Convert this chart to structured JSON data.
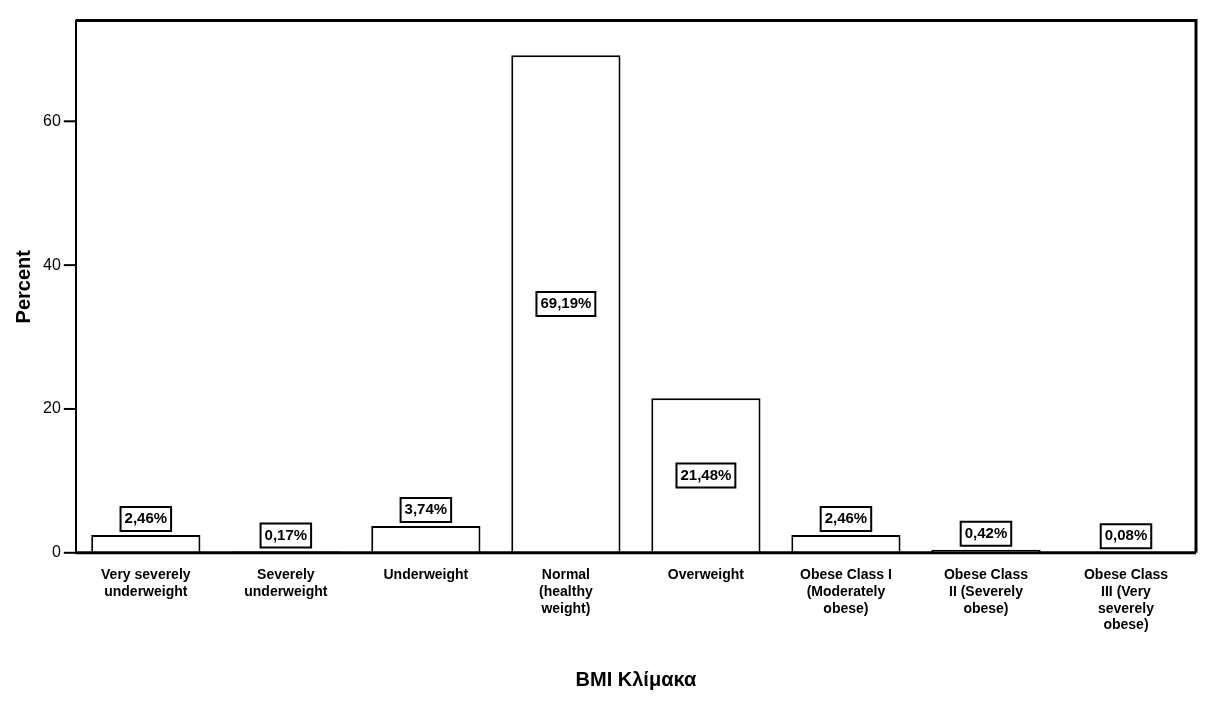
{
  "chart_data": {
    "type": "bar",
    "xlabel": "BMI Κλίμακα",
    "ylabel": "Percent",
    "categories": [
      "Very severely underweight",
      "Severely underweight",
      "Underweight",
      "Normal (healthy weight)",
      "Overweight",
      "Obese Class I (Moderately obese)",
      "Obese Class II (Severely obese)",
      "Obese Class III (Very severely obese)"
    ],
    "values": [
      2.46,
      0.17,
      3.74,
      69.19,
      21.48,
      2.46,
      0.42,
      0.08
    ],
    "value_labels": [
      "2,46%",
      "0,17%",
      "3,74%",
      "69,19%",
      "21,48%",
      "2,46%",
      "0,42%",
      "0,08%"
    ],
    "color": "#ffffff",
    "ylim": [
      0,
      74
    ],
    "yticks": [
      0,
      20,
      40,
      60
    ],
    "grid": false,
    "legend": false
  }
}
